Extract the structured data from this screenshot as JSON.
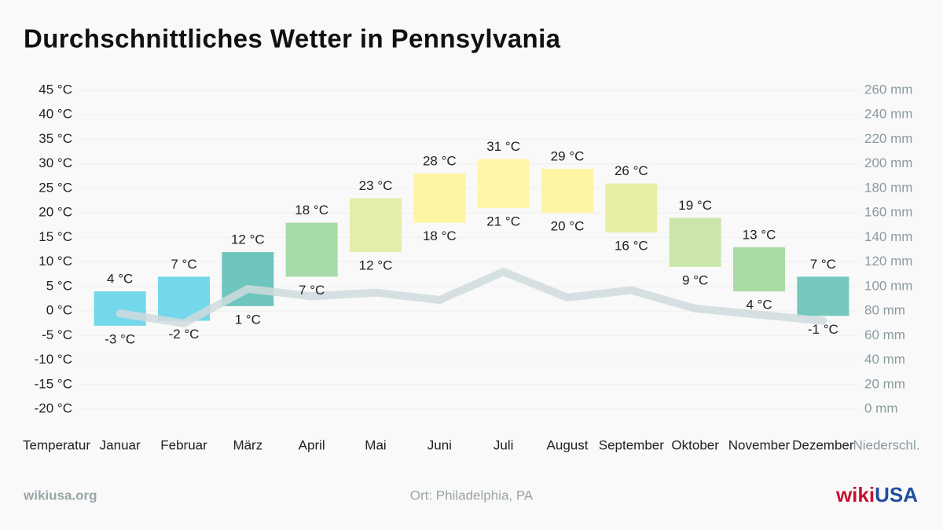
{
  "chart_data": {
    "type": "floating-bar-line",
    "title": "Durchschnittliches Wetter in Pennsylvania",
    "y_axis_label": "Temperatur",
    "y2_axis_label": "Niederschl.",
    "categories": [
      "Januar",
      "Februar",
      "März",
      "April",
      "Mai",
      "Juni",
      "Juli",
      "August",
      "September",
      "Oktober",
      "November",
      "Dezember"
    ],
    "colors": [
      "#72d8ea",
      "#72d8ea",
      "#6ec5bd",
      "#a5dba8",
      "#e3eeaa",
      "#fdf4a4",
      "#fff6a8",
      "#fdf4a4",
      "#e8eea4",
      "#cbe6aa",
      "#a9dca4",
      "#74c7bd"
    ],
    "series": [
      {
        "values": [
          4,
          7,
          12,
          18,
          23,
          28,
          31,
          29,
          26,
          19,
          13,
          7
        ],
        "value_labels": [
          "4 °C",
          "7 °C",
          "12 °C",
          "18 °C",
          "23 °C",
          "28 °C",
          "31 °C",
          "29 °C",
          "26 °C",
          "19 °C",
          "13 °C",
          "7 °C"
        ]
      },
      {
        "values": [
          -3,
          -2,
          1,
          7,
          12,
          18,
          21,
          20,
          16,
          9,
          4,
          -1
        ],
        "value_labels": [
          "-3 °C",
          "-2 °C",
          "1 °C",
          "7 °C",
          "12 °C",
          "18 °C",
          "21 °C",
          "20 °C",
          "16 °C",
          "9 °C",
          "4 °C",
          "-1 °C"
        ]
      },
      {
        "values": [
          78,
          70,
          98,
          92,
          95,
          89,
          112,
          91,
          97,
          82,
          77,
          72
        ],
        "axis": "y2",
        "color": "#d0dadd"
      }
    ],
    "ylim": [
      -20,
      45
    ],
    "yticks": [
      {
        "value": -20,
        "label": "-20 °C"
      },
      {
        "value": -15,
        "label": "-15 °C"
      },
      {
        "value": -10,
        "label": "-10 °C"
      },
      {
        "value": -5,
        "label": "-5 °C"
      },
      {
        "value": 0,
        "label": "0 °C"
      },
      {
        "value": 5,
        "label": "5 °C"
      },
      {
        "value": 10,
        "label": "10 °C"
      },
      {
        "value": 15,
        "label": "15 °C"
      },
      {
        "value": 20,
        "label": "20 °C"
      },
      {
        "value": 25,
        "label": "25 °C"
      },
      {
        "value": 30,
        "label": "30 °C"
      },
      {
        "value": 35,
        "label": "35 °C"
      },
      {
        "value": 40,
        "label": "40 °C"
      },
      {
        "value": 45,
        "label": "45 °C"
      }
    ],
    "y2lim": [
      0,
      260
    ],
    "y2ticks": [
      {
        "value": 0,
        "label": "0 mm"
      },
      {
        "value": 20,
        "label": "20 mm"
      },
      {
        "value": 40,
        "label": "40 mm"
      },
      {
        "value": 60,
        "label": "60 mm"
      },
      {
        "value": 80,
        "label": "80 mm"
      },
      {
        "value": 100,
        "label": "100 mm"
      },
      {
        "value": 120,
        "label": "120 mm"
      },
      {
        "value": 140,
        "label": "140 mm"
      },
      {
        "value": 160,
        "label": "160 mm"
      },
      {
        "value": 180,
        "label": "180 mm"
      },
      {
        "value": 200,
        "label": "200 mm"
      },
      {
        "value": 220,
        "label": "220 mm"
      },
      {
        "value": 240,
        "label": "240 mm"
      },
      {
        "value": 260,
        "label": "260 mm"
      }
    ],
    "grid": true,
    "source": "wikiusa.org",
    "note": "Ort: Philadelphia, PA",
    "logo": [
      "wiki",
      "USA"
    ]
  }
}
